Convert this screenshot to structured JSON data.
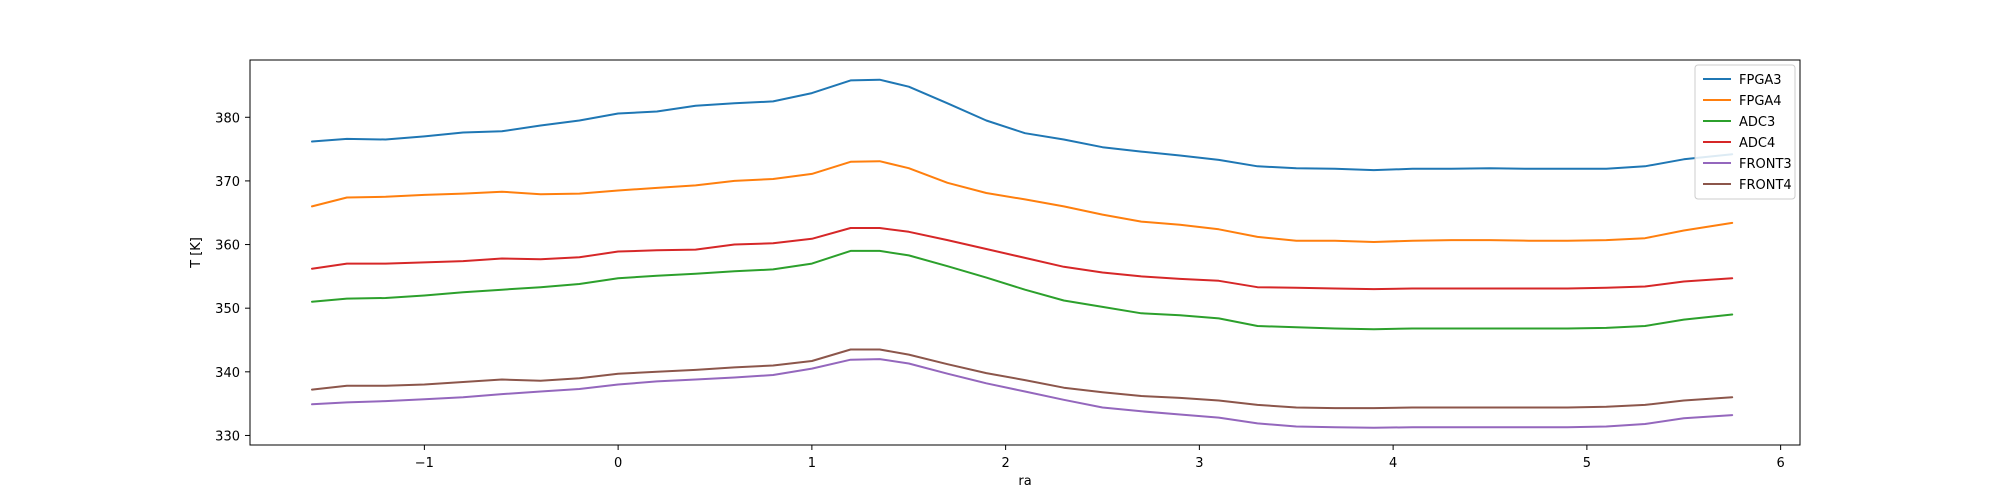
{
  "chart_data": {
    "type": "line",
    "title": "",
    "xlabel": "ra",
    "ylabel": "T [K]",
    "xlim": [
      -1.9,
      6.1
    ],
    "ylim": [
      328.5,
      389.0
    ],
    "xticks": [
      -1,
      0,
      1,
      2,
      3,
      4,
      5,
      6
    ],
    "xtick_labels": [
      "−1",
      "0",
      "1",
      "2",
      "3",
      "4",
      "5",
      "6"
    ],
    "yticks": [
      330,
      340,
      350,
      360,
      370,
      380
    ],
    "ytick_labels": [
      "330",
      "340",
      "350",
      "360",
      "370",
      "380"
    ],
    "grid": false,
    "legend_position": "top-right",
    "x": [
      -1.58,
      -1.4,
      -1.2,
      -1.0,
      -0.8,
      -0.6,
      -0.4,
      -0.2,
      0.0,
      0.2,
      0.4,
      0.6,
      0.8,
      1.0,
      1.2,
      1.35,
      1.5,
      1.7,
      1.9,
      2.1,
      2.3,
      2.5,
      2.7,
      2.9,
      3.1,
      3.3,
      3.5,
      3.7,
      3.9,
      4.1,
      4.3,
      4.5,
      4.7,
      4.9,
      5.1,
      5.3,
      5.5,
      5.75
    ],
    "series": [
      {
        "name": "FPGA3",
        "color": "#1f77b4",
        "values": [
          376.2,
          376.6,
          376.5,
          377.0,
          377.6,
          377.8,
          378.7,
          379.5,
          380.6,
          380.9,
          381.8,
          382.2,
          382.5,
          383.8,
          385.8,
          385.9,
          384.8,
          382.2,
          379.5,
          377.5,
          376.5,
          375.3,
          374.6,
          374.0,
          373.3,
          372.3,
          372.0,
          371.9,
          371.7,
          371.9,
          371.9,
          372.0,
          371.9,
          371.9,
          371.9,
          372.3,
          373.4,
          374.2
        ]
      },
      {
        "name": "FPGA4",
        "color": "#ff7f0e",
        "values": [
          366.0,
          367.4,
          367.5,
          367.8,
          368.0,
          368.3,
          367.9,
          368.0,
          368.5,
          368.9,
          369.3,
          370.0,
          370.3,
          371.1,
          373.0,
          373.1,
          372.0,
          369.7,
          368.1,
          367.1,
          366.0,
          364.7,
          363.6,
          363.1,
          362.4,
          361.2,
          360.6,
          360.6,
          360.4,
          360.6,
          360.7,
          360.7,
          360.6,
          360.6,
          360.7,
          361.0,
          362.2,
          363.4
        ]
      },
      {
        "name": "ADC3",
        "color": "#2ca02c",
        "values": [
          351.0,
          351.5,
          351.6,
          352.0,
          352.5,
          352.9,
          353.3,
          353.8,
          354.7,
          355.1,
          355.4,
          355.8,
          356.1,
          357.0,
          359.0,
          359.0,
          358.3,
          356.6,
          354.8,
          352.9,
          351.2,
          350.2,
          349.2,
          348.9,
          348.4,
          347.2,
          347.0,
          346.8,
          346.7,
          346.8,
          346.8,
          346.8,
          346.8,
          346.8,
          346.9,
          347.2,
          348.2,
          349.0
        ]
      },
      {
        "name": "ADC4",
        "color": "#d62728",
        "values": [
          356.2,
          357.0,
          357.0,
          357.2,
          357.4,
          357.8,
          357.7,
          358.0,
          358.9,
          359.1,
          359.2,
          360.0,
          360.2,
          360.9,
          362.6,
          362.6,
          362.0,
          360.7,
          359.3,
          357.9,
          356.5,
          355.6,
          355.0,
          354.6,
          354.3,
          353.3,
          353.2,
          353.1,
          353.0,
          353.1,
          353.1,
          353.1,
          353.1,
          353.1,
          353.2,
          353.4,
          354.2,
          354.7
        ]
      },
      {
        "name": "FRONT3",
        "color": "#9467bd",
        "values": [
          334.9,
          335.2,
          335.4,
          335.7,
          336.0,
          336.5,
          336.9,
          337.3,
          338.0,
          338.5,
          338.8,
          339.1,
          339.5,
          340.5,
          341.9,
          342.0,
          341.3,
          339.7,
          338.2,
          336.9,
          335.6,
          334.4,
          333.8,
          333.3,
          332.8,
          331.9,
          331.4,
          331.3,
          331.2,
          331.3,
          331.3,
          331.3,
          331.3,
          331.3,
          331.4,
          331.8,
          332.7,
          333.2
        ]
      },
      {
        "name": "FRONT4",
        "color": "#8c564b",
        "values": [
          337.2,
          337.8,
          337.8,
          338.0,
          338.4,
          338.8,
          338.6,
          339.0,
          339.7,
          340.0,
          340.3,
          340.7,
          341.0,
          341.7,
          343.5,
          343.5,
          342.7,
          341.2,
          339.8,
          338.7,
          337.5,
          336.8,
          336.2,
          335.9,
          335.5,
          334.8,
          334.4,
          334.3,
          334.3,
          334.4,
          334.4,
          334.4,
          334.4,
          334.4,
          334.5,
          334.8,
          335.5,
          336.0
        ]
      }
    ]
  }
}
